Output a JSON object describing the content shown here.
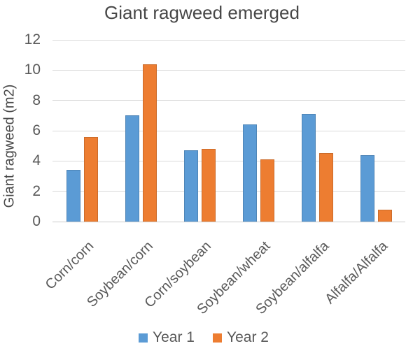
{
  "chart_data": {
    "type": "bar",
    "title": "Giant ragweed emerged",
    "xlabel": "",
    "ylabel": "Giant ragweed (m2)",
    "categories": [
      "Corn/corn",
      "Soybean/corn",
      "Corn/soybean",
      "Soybean/wheat",
      "Soybean/alfalfa",
      "Alfalfa/Alfalfa"
    ],
    "series": [
      {
        "name": "Year 1",
        "color": "#5B9BD5",
        "values": [
          3.4,
          7.0,
          4.7,
          6.4,
          7.1,
          4.4
        ]
      },
      {
        "name": "Year 2",
        "color": "#ED7D31",
        "values": [
          5.6,
          10.4,
          4.8,
          4.1,
          4.5,
          0.8
        ]
      }
    ],
    "ylim": [
      0,
      12
    ],
    "yticks": [
      0,
      2,
      4,
      6,
      8,
      10,
      12
    ],
    "grid": true,
    "gridline_color": "#d9d9d9",
    "legend_position": "bottom"
  }
}
